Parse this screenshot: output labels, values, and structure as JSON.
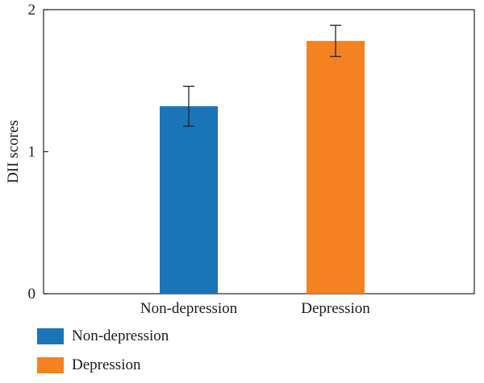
{
  "chart_data": {
    "type": "bar",
    "categories": [
      "Non-depression",
      "Depression"
    ],
    "values": [
      1.32,
      1.78
    ],
    "error": [
      0.14,
      0.11
    ],
    "ylabel": "DII scores",
    "ylim": [
      0,
      2
    ],
    "yticks": [
      0,
      1,
      2
    ],
    "colors": [
      "#1a75b8",
      "#f58220"
    ],
    "grid": false,
    "legend": {
      "position": "bottom-left",
      "items": [
        {
          "label": "Non-depression",
          "color": "#1a75b8"
        },
        {
          "label": "Depression",
          "color": "#f58220"
        }
      ]
    }
  }
}
